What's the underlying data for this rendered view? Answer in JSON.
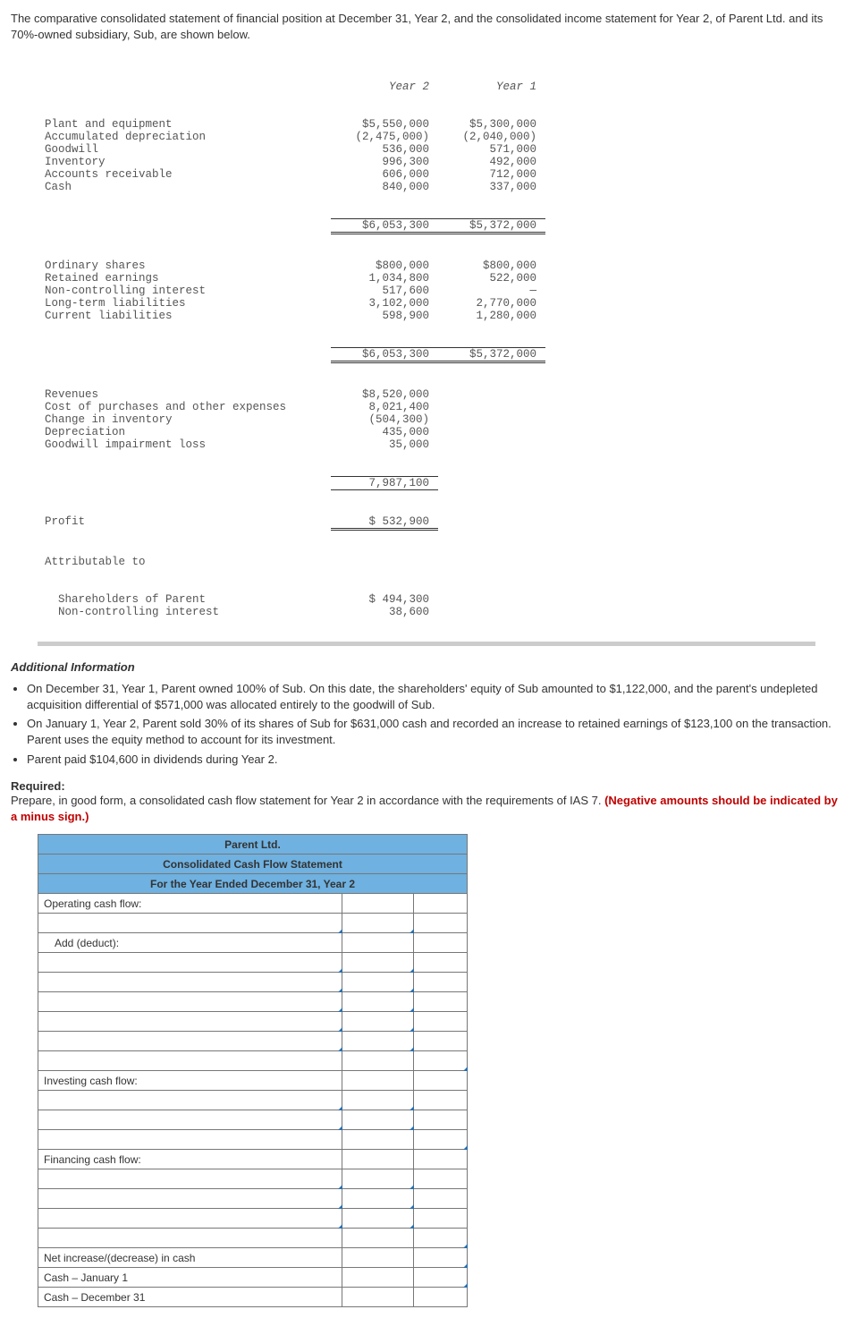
{
  "intro": "The comparative consolidated statement of financial position at December 31, Year 2, and the consolidated income statement for Year 2, of Parent Ltd. and its 70%-owned subsidiary, Sub, are shown below.",
  "fin_table": {
    "headers": {
      "y2": "Year 2",
      "y1": "Year 1"
    },
    "assets": [
      {
        "label": "Plant and equipment",
        "y2": "$5,550,000",
        "y1": "$5,300,000"
      },
      {
        "label": "Accumulated depreciation",
        "y2": "(2,475,000)",
        "y1": "(2,040,000)"
      },
      {
        "label": "Goodwill",
        "y2": "536,000",
        "y1": "571,000"
      },
      {
        "label": "Inventory",
        "y2": "996,300",
        "y1": "492,000"
      },
      {
        "label": "Accounts receivable",
        "y2": "606,000",
        "y1": "712,000"
      },
      {
        "label": "Cash",
        "y2": "840,000",
        "y1": "337,000"
      }
    ],
    "assets_total": {
      "y2": "$6,053,300",
      "y1": "$5,372,000"
    },
    "equity": [
      {
        "label": "Ordinary shares",
        "y2": "$800,000",
        "y1": "$800,000"
      },
      {
        "label": "Retained earnings",
        "y2": "1,034,800",
        "y1": "522,000"
      },
      {
        "label": "Non-controlling interest",
        "y2": "517,600",
        "y1": "—"
      },
      {
        "label": "Long-term liabilities",
        "y2": "3,102,000",
        "y1": "2,770,000"
      },
      {
        "label": "Current liabilities",
        "y2": "598,900",
        "y1": "1,280,000"
      }
    ],
    "equity_total": {
      "y2": "$6,053,300",
      "y1": "$5,372,000"
    },
    "income": [
      {
        "label": "Revenues",
        "y2": "$8,520,000"
      },
      {
        "label": "Cost of purchases and other expenses",
        "y2": "8,021,400"
      },
      {
        "label": "Change in inventory",
        "y2": "(504,300)"
      },
      {
        "label": "Depreciation",
        "y2": "435,000"
      },
      {
        "label": "Goodwill impairment loss",
        "y2": "35,000"
      }
    ],
    "income_subtotal": {
      "y2": "7,987,100"
    },
    "profit": {
      "label": "Profit",
      "y2": "$ 532,900"
    },
    "attributable_label": "Attributable to",
    "attributable": [
      {
        "label": "  Shareholders of Parent",
        "y2": "$ 494,300"
      },
      {
        "label": "  Non-controlling interest",
        "y2": "38,600"
      }
    ]
  },
  "additional_title": "Additional Information",
  "additional_items": [
    "On December 31, Year 1, Parent owned 100% of Sub. On this date, the shareholders' equity of Sub amounted to $1,122,000, and the parent's undepleted acquisition differential of $571,000 was allocated entirely to the goodwill of Sub.",
    "On January 1, Year 2, Parent sold 30% of its shares of Sub for $631,000 cash and recorded an increase to retained earnings of $123,100 on the transaction. Parent uses the equity method to account for its investment.",
    "Parent paid $104,600 in dividends during Year 2."
  ],
  "required_label": "Required:",
  "required_text": "Prepare, in good form, a consolidated cash flow statement for Year 2 in accordance with the requirements of IAS 7. ",
  "required_neg": "(Negative amounts should be indicated by a minus sign.)",
  "answer": {
    "h1": "Parent Ltd.",
    "h2": "Consolidated Cash Flow Statement",
    "h3": "For the Year Ended December 31, Year 2",
    "rows": {
      "op": "Operating cash flow:",
      "add": "Add (deduct):",
      "inv": "Investing cash flow:",
      "fin": "Financing cash flow:",
      "net": "Net increase/(decrease) in cash",
      "jan": "Cash – January 1",
      "dec": "Cash – December 31"
    }
  }
}
